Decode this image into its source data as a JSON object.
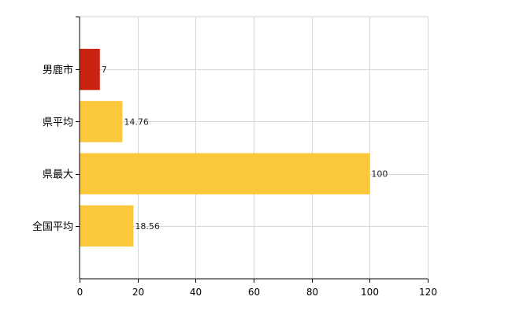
{
  "chart_data": {
    "type": "bar",
    "orientation": "horizontal",
    "categories": [
      "男鹿市",
      "県平均",
      "県最大",
      "全国平均"
    ],
    "values": [
      7,
      14.76,
      100,
      18.56
    ],
    "data_labels": [
      "7",
      "14.76",
      "100",
      "18.56"
    ],
    "bar_colors": [
      "#cc2211",
      "#fbc83c",
      "#fbc83c",
      "#fbc83c"
    ],
    "title": "",
    "xlabel": "",
    "ylabel": "",
    "xlim": [
      0,
      120
    ],
    "x_ticks": [
      0,
      20,
      40,
      60,
      80,
      100,
      120
    ],
    "grid": true,
    "grid_color": "#d8d8d8",
    "legend": "none"
  }
}
